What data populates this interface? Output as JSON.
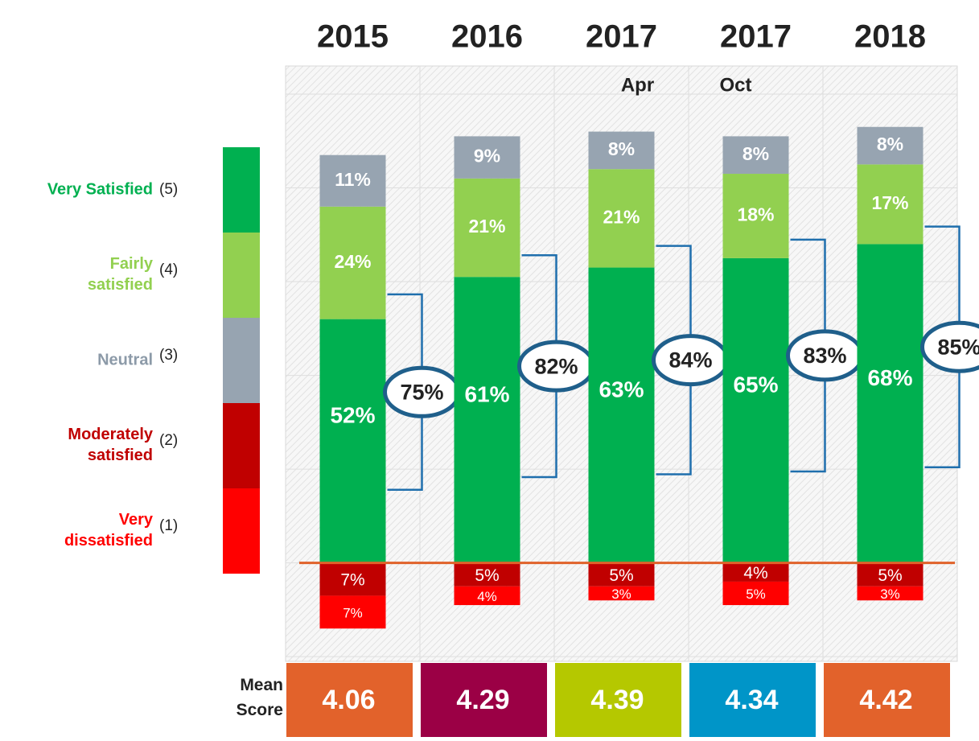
{
  "chart_data": {
    "type": "diverging_stacked_bar",
    "categories": [
      "2015",
      "2016",
      "2017",
      "2017",
      "2018"
    ],
    "category_sublabels": [
      null,
      null,
      "Apr",
      "Oct",
      null
    ],
    "series": [
      {
        "name": "Very Satisfied",
        "code": "(5)",
        "color": "#00b050",
        "stack": "up",
        "values": [
          52,
          61,
          63,
          65,
          68
        ],
        "value_labels": [
          "52%",
          "61%",
          "63%",
          "65%",
          "68%"
        ]
      },
      {
        "name": "Fairly satisfied",
        "code": "(4)",
        "color": "#92d050",
        "stack": "up",
        "values": [
          24,
          21,
          21,
          18,
          17
        ],
        "value_labels": [
          "24%",
          "21%",
          "21%",
          "18%",
          "17%"
        ]
      },
      {
        "name": "Neutral",
        "code": "(3)",
        "color": "#97a4b1",
        "stack": "up",
        "values": [
          11,
          9,
          8,
          8,
          8
        ],
        "value_labels": [
          "11%",
          "9%",
          "8%",
          "8%",
          "8%"
        ]
      },
      {
        "name": "Moderately satisfied",
        "code": "(2)",
        "color": "#c00000",
        "stack": "down",
        "values": [
          7,
          5,
          5,
          4,
          5
        ],
        "value_labels": [
          "7%",
          "5%",
          "5%",
          "4%",
          "5%"
        ]
      },
      {
        "name": "Very dissatisfied",
        "code": "(1)",
        "color": "#ff0000",
        "stack": "down",
        "values": [
          7,
          4,
          3,
          5,
          3
        ],
        "value_labels": [
          "7%",
          "4%",
          "3%",
          "5%",
          "3%"
        ]
      }
    ],
    "net_satisfied": {
      "values": [
        75,
        82,
        84,
        83,
        85
      ],
      "value_labels": [
        "75%",
        "82%",
        "84%",
        "83%",
        "85%"
      ],
      "color": "#1f6fad"
    },
    "mean_score": {
      "label": "Mean Score",
      "values": [
        4.06,
        4.29,
        4.39,
        4.34,
        4.42
      ],
      "colors": [
        "#e2622b",
        "#9b0045",
        "#b5c800",
        "#0095c8",
        "#e2622b"
      ]
    },
    "zero_line_color": "#e0622a",
    "ylim": [
      -21,
      106
    ],
    "ygrid": [
      -20,
      0,
      20,
      40,
      60,
      80,
      100
    ],
    "grid": true
  }
}
